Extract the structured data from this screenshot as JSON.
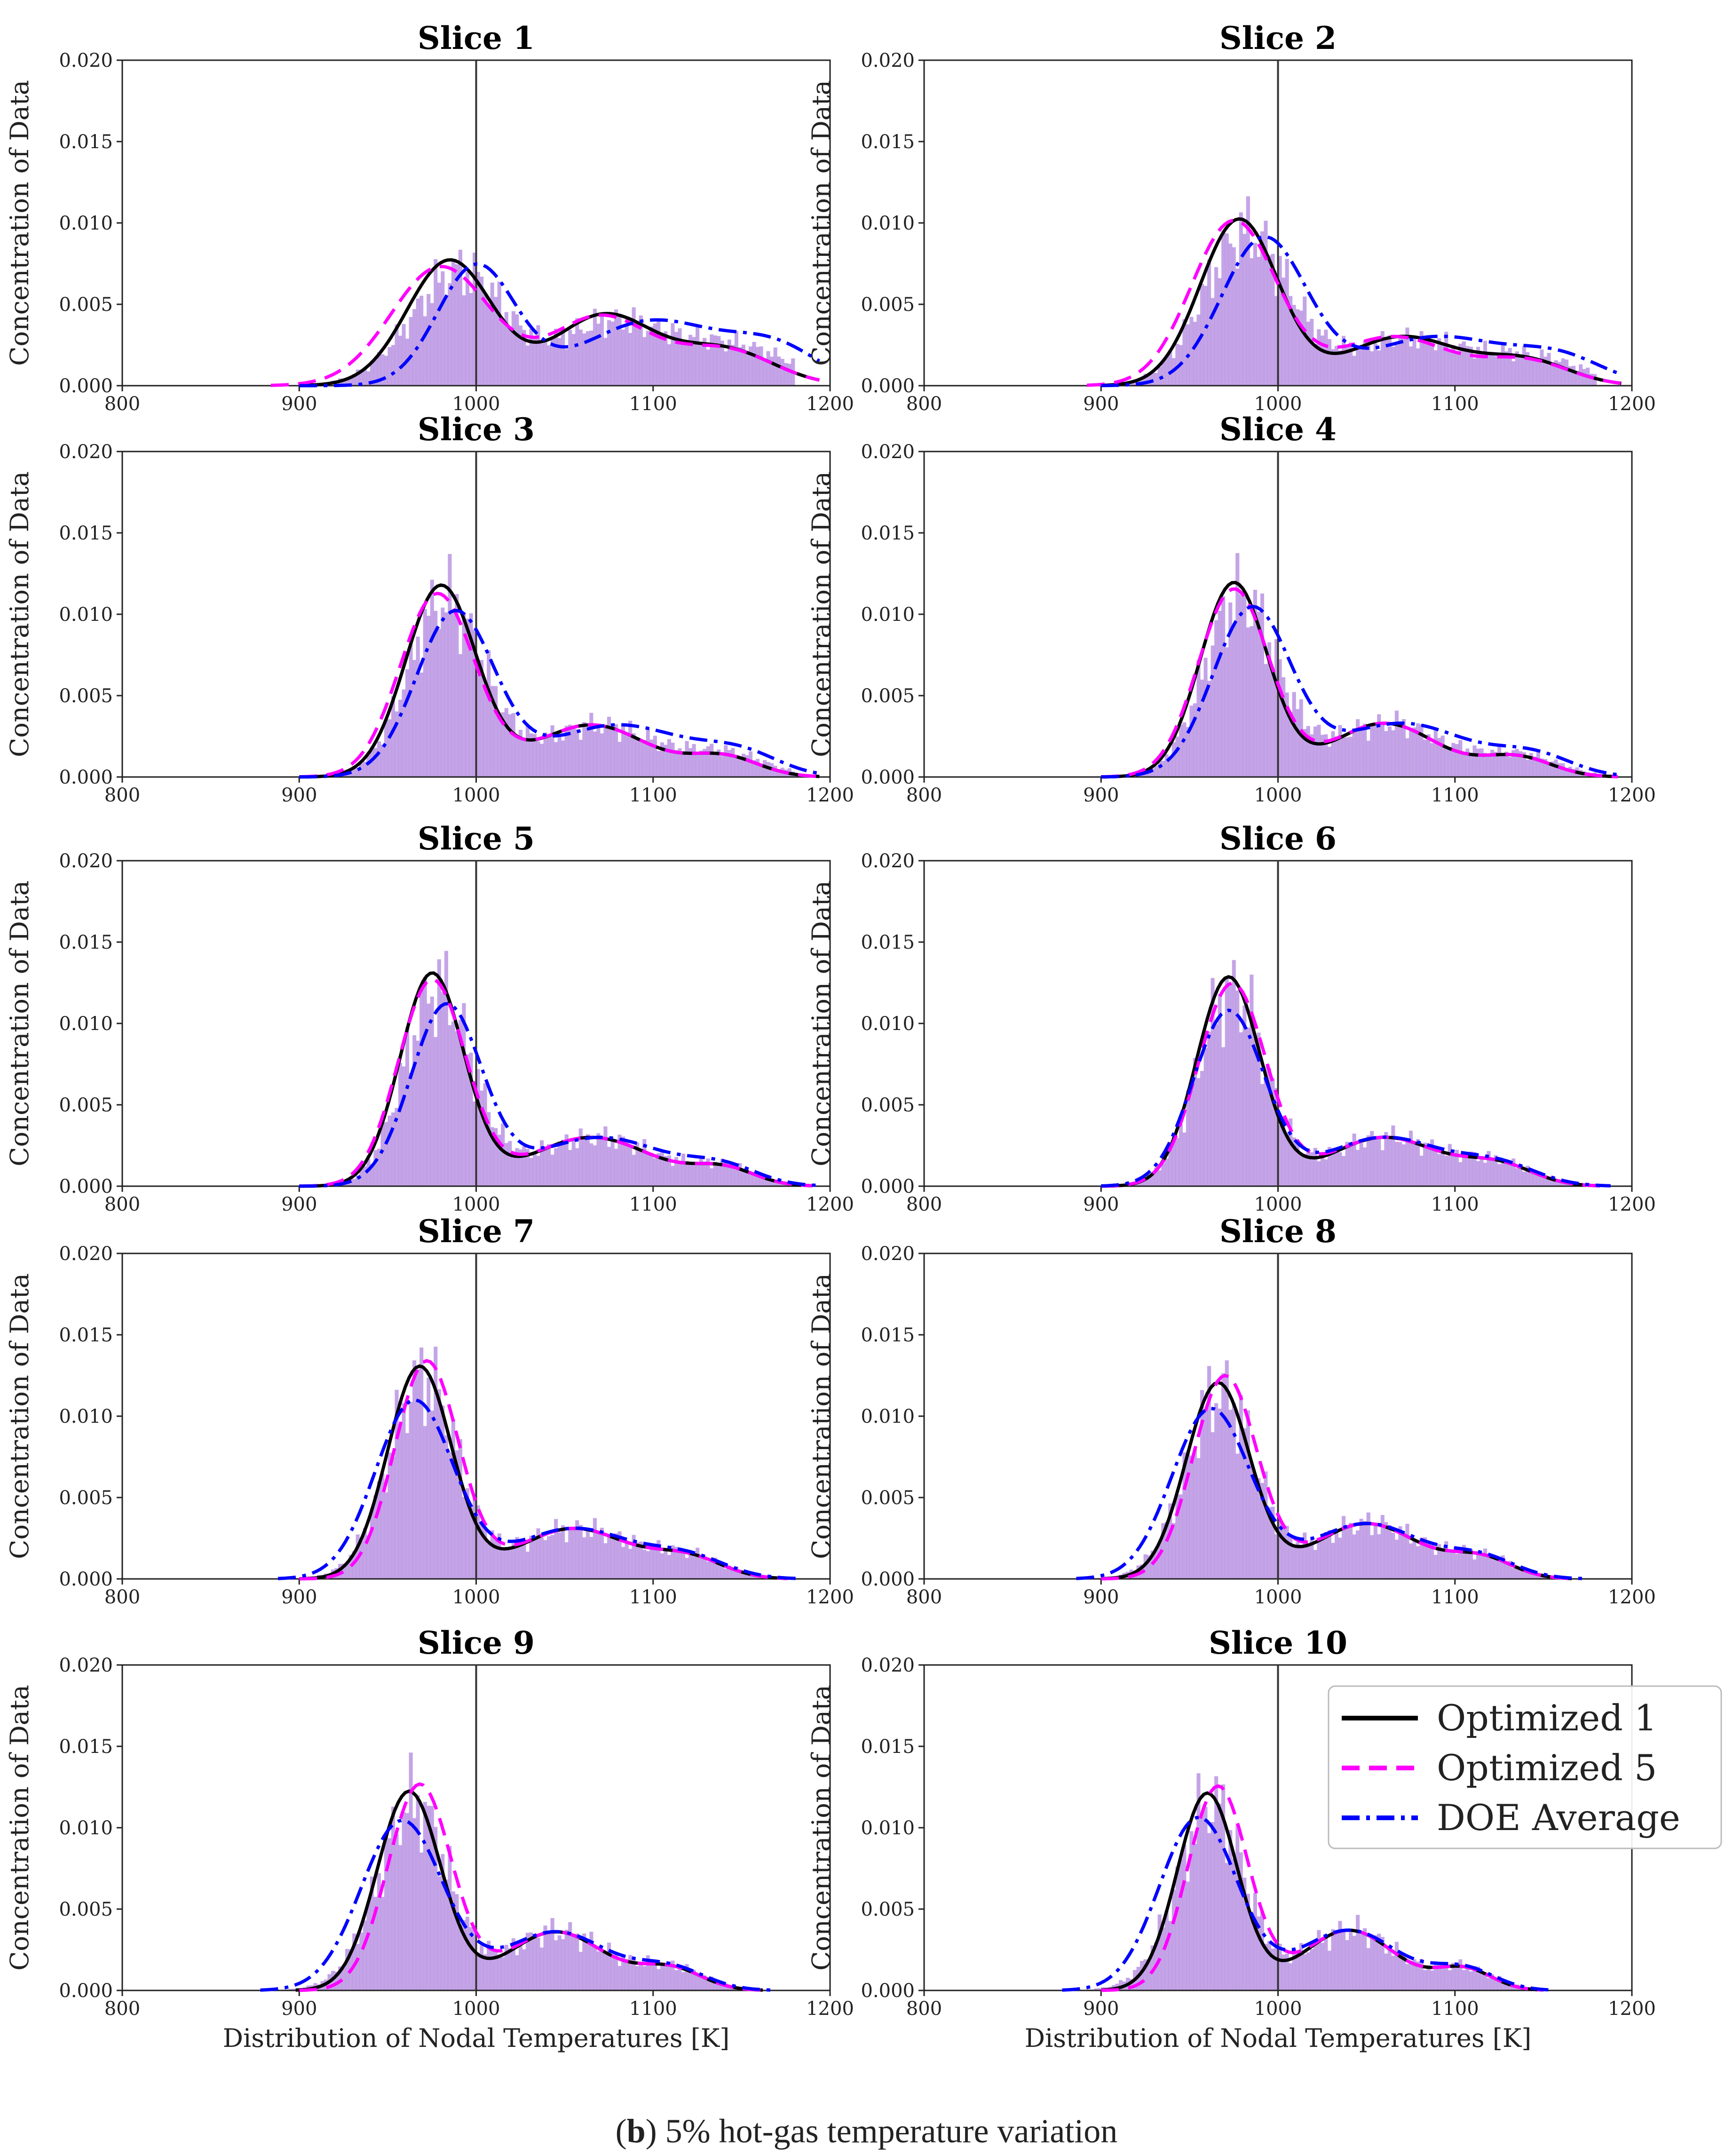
{
  "chart_data": {
    "type": "histogram_with_kde",
    "xlabel": "Distribution of Nodal Temperatures [K]",
    "ylabel": "Concentration of Data",
    "xlim": [
      800,
      1200
    ],
    "ylim": [
      0,
      0.02
    ],
    "x_ticks": [
      "800",
      "900",
      "1000",
      "1100",
      "1200"
    ],
    "y_ticks": [
      "0.000",
      "0.005",
      "0.010",
      "0.015",
      "0.020"
    ],
    "reference_line_x": 1000,
    "legend": {
      "location": "upper right of Slice 10",
      "entries": [
        {
          "name": "Optimized 1",
          "color": "#000000",
          "style": "solid"
        },
        {
          "name": "Optimized 5",
          "color": "#ff00ff",
          "style": "dashed"
        },
        {
          "name": "DOE Average",
          "color": "#0000ff",
          "style": "dashdot"
        }
      ]
    },
    "histogram_color": "#b48be0",
    "panels": [
      {
        "title": "Slice 1",
        "series": [
          {
            "name": "Optimized 1",
            "components": [
              [
                0.0077,
                985,
                24
              ],
              [
                0.0043,
                1072,
                28
              ],
              [
                0.0022,
                1140,
                28
              ]
            ]
          },
          {
            "name": "Optimized 5",
            "components": [
              [
                0.0073,
                980,
                28
              ],
              [
                0.0042,
                1070,
                28
              ],
              [
                0.0022,
                1140,
                28
              ]
            ]
          },
          {
            "name": "DOE Average",
            "components": [
              [
                0.0073,
                1000,
                22
              ],
              [
                0.004,
                1100,
                40
              ],
              [
                0.002,
                1170,
                25
              ]
            ]
          }
        ]
      },
      {
        "title": "Slice 2",
        "series": [
          {
            "name": "Optimized 1",
            "components": [
              [
                0.0102,
                978,
                22
              ],
              [
                0.003,
                1070,
                32
              ],
              [
                0.0015,
                1140,
                25
              ]
            ]
          },
          {
            "name": "Optimized 5",
            "components": [
              [
                0.0101,
                975,
                24
              ],
              [
                0.003,
                1065,
                32
              ],
              [
                0.0015,
                1140,
                25
              ]
            ]
          },
          {
            "name": "DOE Average",
            "components": [
              [
                0.009,
                992,
                24
              ],
              [
                0.003,
                1090,
                40
              ],
              [
                0.0015,
                1160,
                25
              ]
            ]
          }
        ]
      },
      {
        "title": "Slice 3",
        "series": [
          {
            "name": "Optimized 1",
            "components": [
              [
                0.0117,
                980,
                20
              ],
              [
                0.0032,
                1065,
                32
              ],
              [
                0.0012,
                1140,
                20
              ]
            ]
          },
          {
            "name": "Optimized 5",
            "components": [
              [
                0.0112,
                978,
                21
              ],
              [
                0.0032,
                1065,
                32
              ],
              [
                0.0012,
                1140,
                20
              ]
            ]
          },
          {
            "name": "DOE Average",
            "components": [
              [
                0.01,
                988,
                22
              ],
              [
                0.0032,
                1080,
                40
              ],
              [
                0.0012,
                1150,
                22
              ]
            ]
          }
        ]
      },
      {
        "title": "Slice 4",
        "series": [
          {
            "name": "Optimized 1",
            "components": [
              [
                0.0119,
                975,
                19
              ],
              [
                0.0033,
                1060,
                30
              ],
              [
                0.0012,
                1135,
                20
              ]
            ]
          },
          {
            "name": "Optimized 5",
            "components": [
              [
                0.0115,
                975,
                20
              ],
              [
                0.0033,
                1060,
                30
              ],
              [
                0.0012,
                1135,
                20
              ]
            ]
          },
          {
            "name": "DOE Average",
            "components": [
              [
                0.0102,
                985,
                22
              ],
              [
                0.0033,
                1070,
                38
              ],
              [
                0.0012,
                1145,
                22
              ]
            ]
          }
        ]
      },
      {
        "title": "Slice 5",
        "series": [
          {
            "name": "Optimized 1",
            "components": [
              [
                0.013,
                975,
                18
              ],
              [
                0.003,
                1065,
                35
              ],
              [
                0.001,
                1140,
                18
              ]
            ]
          },
          {
            "name": "Optimized 5",
            "components": [
              [
                0.0126,
                975,
                19
              ],
              [
                0.003,
                1065,
                35
              ],
              [
                0.001,
                1140,
                18
              ]
            ]
          },
          {
            "name": "DOE Average",
            "components": [
              [
                0.011,
                983,
                20
              ],
              [
                0.003,
                1070,
                38
              ],
              [
                0.001,
                1140,
                20
              ]
            ]
          }
        ]
      },
      {
        "title": "Slice 6",
        "series": [
          {
            "name": "Optimized 1",
            "components": [
              [
                0.0128,
                972,
                18
              ],
              [
                0.003,
                1060,
                32
              ],
              [
                0.0012,
                1125,
                20
              ]
            ]
          },
          {
            "name": "Optimized 5",
            "components": [
              [
                0.0124,
                974,
                19
              ],
              [
                0.003,
                1060,
                32
              ],
              [
                0.0012,
                1125,
                20
              ]
            ]
          },
          {
            "name": "DOE Average",
            "components": [
              [
                0.0107,
                972,
                20
              ],
              [
                0.003,
                1060,
                34
              ],
              [
                0.0012,
                1125,
                22
              ]
            ]
          }
        ]
      },
      {
        "title": "Slice 7",
        "series": [
          {
            "name": "Optimized 1",
            "components": [
              [
                0.013,
                968,
                18
              ],
              [
                0.0031,
                1055,
                32
              ],
              [
                0.0012,
                1120,
                20
              ]
            ]
          },
          {
            "name": "Optimized 5",
            "components": [
              [
                0.0133,
                972,
                18
              ],
              [
                0.0031,
                1055,
                32
              ],
              [
                0.0012,
                1120,
                20
              ]
            ]
          },
          {
            "name": "DOE Average",
            "components": [
              [
                0.0109,
                965,
                22
              ],
              [
                0.0031,
                1055,
                34
              ],
              [
                0.0012,
                1120,
                22
              ]
            ]
          }
        ]
      },
      {
        "title": "Slice 8",
        "series": [
          {
            "name": "Optimized 1",
            "components": [
              [
                0.012,
                966,
                18
              ],
              [
                0.0034,
                1050,
                30
              ],
              [
                0.0012,
                1115,
                18
              ]
            ]
          },
          {
            "name": "Optimized 5",
            "components": [
              [
                0.0124,
                970,
                18
              ],
              [
                0.0034,
                1050,
                30
              ],
              [
                0.0012,
                1115,
                18
              ]
            ]
          },
          {
            "name": "DOE Average",
            "components": [
              [
                0.0104,
                962,
                22
              ],
              [
                0.0034,
                1050,
                32
              ],
              [
                0.0012,
                1115,
                20
              ]
            ]
          }
        ]
      },
      {
        "title": "Slice 9",
        "series": [
          {
            "name": "Optimized 1",
            "components": [
              [
                0.0122,
                962,
                18
              ],
              [
                0.0036,
                1045,
                28
              ],
              [
                0.0013,
                1110,
                18
              ]
            ]
          },
          {
            "name": "Optimized 5",
            "components": [
              [
                0.0126,
                968,
                18
              ],
              [
                0.0036,
                1045,
                28
              ],
              [
                0.0013,
                1110,
                18
              ]
            ]
          },
          {
            "name": "DOE Average",
            "components": [
              [
                0.0104,
                958,
                23
              ],
              [
                0.0036,
                1045,
                30
              ],
              [
                0.0013,
                1110,
                20
              ]
            ]
          }
        ]
      },
      {
        "title": "Slice 10",
        "series": [
          {
            "name": "Optimized 1",
            "components": [
              [
                0.0121,
                960,
                17
              ],
              [
                0.0037,
                1040,
                26
              ],
              [
                0.0013,
                1105,
                16
              ]
            ]
          },
          {
            "name": "Optimized 5",
            "components": [
              [
                0.0125,
                966,
                17
              ],
              [
                0.0037,
                1040,
                26
              ],
              [
                0.0013,
                1105,
                16
              ]
            ]
          },
          {
            "name": "DOE Average",
            "components": [
              [
                0.0106,
                955,
                22
              ],
              [
                0.0037,
                1040,
                28
              ],
              [
                0.0013,
                1105,
                18
              ]
            ]
          }
        ]
      }
    ]
  },
  "caption": {
    "letter": "b",
    "text": ") 5% hot-gas temperature variation"
  }
}
